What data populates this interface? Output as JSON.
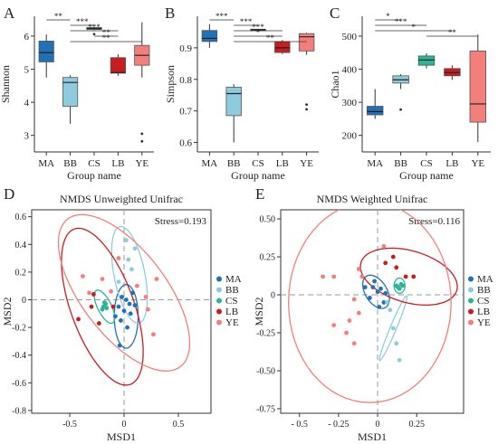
{
  "chart_data": [
    {
      "panel": "A",
      "type": "box",
      "ylabel": "Shannon",
      "xlabel": "Group name",
      "ylim": [
        2.5,
        6.6
      ],
      "yticks": [
        3,
        4,
        5,
        6
      ],
      "categories": [
        "MA",
        "BB",
        "CS",
        "LB",
        "YE"
      ],
      "colors": [
        "#2270b5",
        "#8fcbdf",
        "#2ab594",
        "#c81d1f",
        "#f47f7a"
      ],
      "boxes": [
        {
          "min": 4.75,
          "q1": 5.22,
          "median": 5.5,
          "q3": 5.85,
          "max": 6.05,
          "outliers": []
        },
        {
          "min": 3.35,
          "q1": 3.88,
          "median": 4.6,
          "q3": 4.75,
          "max": 4.82,
          "outliers": []
        },
        {
          "min": 6.18,
          "q1": 6.2,
          "median": 6.23,
          "q3": 6.26,
          "max": 6.28,
          "outliers": [
            6.06
          ]
        },
        {
          "min": 4.8,
          "q1": 4.88,
          "median": 4.9,
          "q3": 5.35,
          "max": 5.45,
          "outliers": []
        },
        {
          "min": 4.75,
          "q1": 5.12,
          "median": 5.42,
          "q3": 5.72,
          "max": 6.42,
          "outliers": [
            3.05,
            2.82
          ]
        }
      ],
      "significance": [
        {
          "from": 0,
          "to": 1,
          "label": "**"
        },
        {
          "from": 1,
          "to": 2,
          "label": "***"
        },
        {
          "from": 1,
          "to": 3,
          "label": "***"
        },
        {
          "from": 2,
          "to": 3,
          "label": "**"
        },
        {
          "from": 1,
          "to": 4,
          "label": "**"
        }
      ]
    },
    {
      "panel": "B",
      "type": "box",
      "ylabel": "Simpson",
      "xlabel": "Group name",
      "ylim": [
        0.57,
        1.0
      ],
      "yticks": [
        0.6,
        0.7,
        0.8,
        0.9
      ],
      "categories": [
        "MA",
        "BB",
        "CS",
        "LB",
        "YE"
      ],
      "colors": [
        "#2270b5",
        "#8fcbdf",
        "#2ab594",
        "#c81d1f",
        "#f47f7a"
      ],
      "boxes": [
        {
          "min": 0.9,
          "q1": 0.92,
          "median": 0.93,
          "q3": 0.955,
          "max": 0.975,
          "outliers": []
        },
        {
          "min": 0.6,
          "q1": 0.685,
          "median": 0.755,
          "q3": 0.775,
          "max": 0.785,
          "outliers": []
        },
        {
          "min": 0.953,
          "q1": 0.955,
          "median": 0.957,
          "q3": 0.959,
          "max": 0.96,
          "outliers": []
        },
        {
          "min": 0.88,
          "q1": 0.885,
          "median": 0.9,
          "q3": 0.92,
          "max": 0.925,
          "outliers": []
        },
        {
          "min": 0.878,
          "q1": 0.89,
          "median": 0.935,
          "q3": 0.945,
          "max": 0.948,
          "outliers": [
            0.72,
            0.705
          ]
        }
      ],
      "significance": [
        {
          "from": 0,
          "to": 1,
          "label": "***"
        },
        {
          "from": 1,
          "to": 2,
          "label": "***"
        },
        {
          "from": 1,
          "to": 3,
          "label": "***"
        },
        {
          "from": 1,
          "to": 3,
          "label": "*"
        },
        {
          "from": 1,
          "to": 4,
          "label": "**"
        }
      ]
    },
    {
      "panel": "C",
      "type": "box",
      "ylabel": "Chao1",
      "xlabel": "Group name",
      "ylim": [
        150,
        560
      ],
      "yticks": [
        200,
        300,
        400,
        500
      ],
      "categories": [
        "MA",
        "BB",
        "CS",
        "LB",
        "YE"
      ],
      "colors": [
        "#2270b5",
        "#8fcbdf",
        "#2ab594",
        "#c81d1f",
        "#f47f7a"
      ],
      "boxes": [
        {
          "min": 250,
          "q1": 262,
          "median": 272,
          "q3": 288,
          "max": 340,
          "outliers": []
        },
        {
          "min": 340,
          "q1": 358,
          "median": 368,
          "q3": 380,
          "max": 385,
          "outliers": [
            278
          ]
        },
        {
          "min": 402,
          "q1": 412,
          "median": 428,
          "q3": 440,
          "max": 448,
          "outliers": []
        },
        {
          "min": 368,
          "q1": 380,
          "median": 390,
          "q3": 402,
          "max": 412,
          "outliers": []
        },
        {
          "min": 180,
          "q1": 240,
          "median": 295,
          "q3": 455,
          "max": 505,
          "outliers": []
        }
      ],
      "significance": [
        {
          "from": 0,
          "to": 1,
          "label": "*"
        },
        {
          "from": 0,
          "to": 2,
          "label": "***"
        },
        {
          "from": 0,
          "to": 3,
          "label": "*"
        },
        {
          "from": 2,
          "to": 4,
          "label": "**"
        }
      ]
    },
    {
      "panel": "D",
      "type": "scatter",
      "title": "NMDS Unweighted Unifrac",
      "xlabel": "MSD1",
      "ylabel": "MSD2",
      "stress": "Stress=0.193",
      "xlim": [
        -0.85,
        0.8
      ],
      "ylim": [
        -0.82,
        0.65
      ],
      "xticks": [
        -0.5,
        0,
        0.5
      ],
      "xtick_labels": [
        "-0.5",
        "0",
        "0.5"
      ],
      "yticks": [
        -0.8,
        -0.6,
        -0.4,
        -0.2,
        0,
        0.2,
        0.4,
        0.6
      ],
      "ytick_labels": [
        "-0.8",
        "-0.6",
        "-0.4",
        "-0.2",
        "0",
        "0.2",
        "0.4",
        "0.6"
      ],
      "legend": [
        "MA",
        "BB",
        "CS",
        "LB",
        "YE"
      ],
      "colors": [
        "#2270b5",
        "#8fcbdf",
        "#2ab594",
        "#c81d1f",
        "#f47f7a"
      ],
      "series": [
        {
          "name": "MA",
          "points": [
            [
              -0.02,
              0.02
            ],
            [
              0.02,
              0.0
            ],
            [
              0.05,
              -0.03
            ],
            [
              -0.05,
              -0.05
            ],
            [
              0.0,
              -0.08
            ],
            [
              0.06,
              -0.1
            ],
            [
              -0.03,
              -0.15
            ],
            [
              0.03,
              -0.2
            ],
            [
              -0.08,
              -0.12
            ],
            [
              0.08,
              0.05
            ],
            [
              -0.04,
              -0.33
            ],
            [
              0.1,
              -0.04
            ]
          ]
        },
        {
          "name": "BB",
          "points": [
            [
              0.04,
              0.29
            ],
            [
              0.1,
              0.37
            ],
            [
              0.02,
              0.43
            ],
            [
              -0.05,
              0.13
            ],
            [
              0.07,
              0.22
            ]
          ]
        },
        {
          "name": "CS",
          "points": [
            [
              -0.19,
              -0.05
            ],
            [
              -0.17,
              -0.03
            ],
            [
              -0.2,
              -0.07
            ],
            [
              -0.16,
              -0.06
            ],
            [
              -0.18,
              -0.02
            ]
          ]
        },
        {
          "name": "LB",
          "points": [
            [
              -0.42,
              -0.14
            ],
            [
              -0.3,
              -0.05
            ],
            [
              -0.28,
              0.04
            ],
            [
              -0.23,
              -0.17
            ],
            [
              -0.1,
              -0.05
            ]
          ]
        },
        {
          "name": "YE",
          "points": [
            [
              -0.38,
              0.17
            ],
            [
              -0.32,
              0.05
            ],
            [
              -0.2,
              0.15
            ],
            [
              -0.12,
              0.06
            ],
            [
              0.12,
              0.1
            ],
            [
              0.22,
              -0.07
            ],
            [
              0.27,
              -0.25
            ],
            [
              0.3,
              0.15
            ],
            [
              -0.05,
              0.3
            ],
            [
              0.2,
              0.02
            ]
          ]
        }
      ],
      "ellipses": [
        {
          "name": "MA",
          "cx": 0.02,
          "cy": -0.12,
          "rx": 0.11,
          "ry": 0.23,
          "rotate": 0
        },
        {
          "name": "BB",
          "cx": 0.05,
          "cy": 0.18,
          "rx": 0.14,
          "ry": 0.36,
          "rotate": 15
        },
        {
          "name": "CS",
          "cx": -0.18,
          "cy": -0.05,
          "rx": 0.06,
          "ry": 0.14,
          "rotate": 35
        },
        {
          "name": "LB",
          "cx": -0.2,
          "cy": -0.05,
          "rx": 0.28,
          "ry": 0.62,
          "rotate": 27
        },
        {
          "name": "YE",
          "cx": 0.0,
          "cy": 0.05,
          "rx": 0.35,
          "ry": 0.75,
          "rotate": 48
        }
      ]
    },
    {
      "panel": "E",
      "type": "scatter",
      "title": "NMDS Weighted Unifrac",
      "xlabel": "MSD1",
      "ylabel": "MSD2",
      "stress": "Stress=0.116",
      "xlim": [
        -0.62,
        0.55
      ],
      "ylim": [
        -0.78,
        0.56
      ],
      "xticks": [
        -0.5,
        -0.25,
        0,
        0.25
      ],
      "xtick_labels": [
        "- 0.5",
        "- 0.25",
        "0",
        "0.25"
      ],
      "yticks": [
        -0.75,
        -0.5,
        -0.25,
        0,
        0.25,
        0.5
      ],
      "ytick_labels": [
        "-0.75",
        "-0.50",
        "-0.25",
        "0",
        "0.25",
        "0.50"
      ],
      "legend": [
        "MA",
        "BB",
        "CS",
        "LB",
        "YE"
      ],
      "colors": [
        "#2270b5",
        "#8fcbdf",
        "#2ab594",
        "#c81d1f",
        "#f47f7a"
      ],
      "series": [
        {
          "name": "MA",
          "points": [
            [
              -0.03,
              0.05
            ],
            [
              0.0,
              0.02
            ],
            [
              0.02,
              0.04
            ],
            [
              -0.05,
              -0.02
            ],
            [
              0.04,
              -0.05
            ],
            [
              0.01,
              -0.08
            ],
            [
              -0.02,
              0.09
            ],
            [
              0.05,
              0.01
            ],
            [
              -0.08,
              0.05
            ]
          ]
        },
        {
          "name": "BB",
          "points": [
            [
              0.08,
              -0.1
            ],
            [
              0.1,
              -0.22
            ],
            [
              0.12,
              -0.32
            ],
            [
              0.14,
              -0.43
            ],
            [
              0.06,
              -0.05
            ]
          ]
        },
        {
          "name": "CS",
          "points": [
            [
              0.12,
              0.06
            ],
            [
              0.14,
              0.04
            ],
            [
              0.15,
              0.07
            ],
            [
              0.13,
              0.05
            ],
            [
              0.16,
              0.06
            ]
          ]
        },
        {
          "name": "LB",
          "points": [
            [
              0.1,
              0.25
            ],
            [
              0.12,
              0.18
            ],
            [
              0.18,
              0.12
            ],
            [
              0.23,
              0.12
            ],
            [
              0.05,
              0.21
            ]
          ]
        },
        {
          "name": "YE",
          "points": [
            [
              -0.35,
              0.12
            ],
            [
              -0.28,
              0.12
            ],
            [
              -0.12,
              0.17
            ],
            [
              -0.1,
              0.12
            ],
            [
              -0.15,
              -0.03
            ],
            [
              -0.12,
              -0.12
            ],
            [
              -0.18,
              -0.17
            ],
            [
              -0.2,
              -0.25
            ],
            [
              -0.28,
              -0.2
            ],
            [
              -0.15,
              -0.32
            ],
            [
              0.04,
              0.32
            ]
          ]
        }
      ],
      "ellipses": [
        {
          "name": "MA",
          "cx": -0.01,
          "cy": 0.02,
          "rx": 0.07,
          "ry": 0.12,
          "rotate": 30
        },
        {
          "name": "BB",
          "cx": 0.1,
          "cy": -0.22,
          "rx": 0.02,
          "ry": 0.23,
          "rotate": -22
        },
        {
          "name": "CS",
          "cx": 0.14,
          "cy": 0.06,
          "rx": 0.035,
          "ry": 0.05,
          "rotate": 0
        },
        {
          "name": "LB",
          "cx": 0.2,
          "cy": 0.12,
          "rx": 0.32,
          "ry": 0.17,
          "rotate": -17
        },
        {
          "name": "YE",
          "cx": -0.05,
          "cy": -0.05,
          "rx": 0.52,
          "ry": 0.66,
          "rotate": 0
        }
      ]
    }
  ]
}
